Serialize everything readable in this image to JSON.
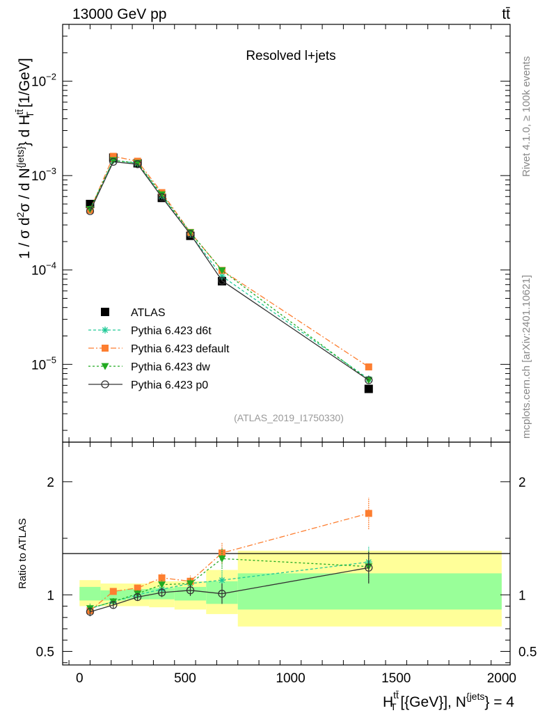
{
  "header": {
    "energy_label": "13000 GeV pp",
    "process_label": "tt̄"
  },
  "side_labels": {
    "rivet": "Rivet 4.1.0, ≥ 100k events",
    "source": "mcplots.cern.ch [arXiv:2401.10621]"
  },
  "chart_data": [
    {
      "type": "line",
      "panel": "main",
      "title": "Resolved l+jets",
      "watermark": "(ATLAS_2019_I1750330)",
      "ylabel": "1 / σ d²σ / d N^{jets} d H_T^{tt̄} [1/GeV]",
      "ylabel_parts": {
        "a": "1 / σ d",
        "b": "2",
        "c": "σ / d N",
        "d": "{jets}",
        "e": "} d H",
        "f": "tt̄",
        "g": "T",
        "h": " [1/GeV]"
      },
      "yscale": "log",
      "ylim": [
        1.5e-06,
        0.04
      ],
      "xlim": [
        -80,
        2040
      ],
      "y_ticks": [
        {
          "value": 1e-05,
          "base": "10",
          "exp": "−5"
        },
        {
          "value": 0.0001,
          "base": "10",
          "exp": "−4"
        },
        {
          "value": 0.001,
          "base": "10",
          "exp": "−3"
        },
        {
          "value": 0.01,
          "base": "10",
          "exp": "−2"
        }
      ],
      "x": [
        50,
        160,
        275,
        390,
        525,
        675,
        1370
      ],
      "series": [
        {
          "name": "ATLAS",
          "color": "#000000",
          "marker": "square",
          "dash": "none",
          "values": [
            0.0005,
            0.00155,
            0.00135,
            0.00058,
            0.00023,
            7.6e-05,
            5.5e-06
          ]
        },
        {
          "name": "Pythia 6.423 d6t",
          "color": "#20c997",
          "marker": "star",
          "dash": "4,3",
          "values": [
            0.00044,
            0.00145,
            0.00135,
            0.00061,
            0.00024,
            8.6e-05,
            7e-06
          ]
        },
        {
          "name": "Pythia 6.423 default",
          "color": "#fd7e30",
          "marker": "square-small",
          "dash": "8,3,2,3",
          "values": [
            0.00043,
            0.0016,
            0.00142,
            0.00066,
            0.00025,
            9.9e-05,
            9.4e-06
          ]
        },
        {
          "name": "Pythia 6.423 dw",
          "color": "#22aa22",
          "marker": "triangle-down",
          "dash": "3,3",
          "values": [
            0.00044,
            0.00145,
            0.00136,
            0.00063,
            0.00025,
            9.9e-05,
            6.8e-06
          ]
        },
        {
          "name": "Pythia 6.423 p0",
          "color": "#333333",
          "marker": "circle-open",
          "dash": "none",
          "values": [
            0.00042,
            0.0014,
            0.00132,
            0.00059,
            0.00024,
            7.7e-05,
            6.8e-06
          ]
        }
      ]
    },
    {
      "type": "line",
      "panel": "ratio",
      "ylabel": "Ratio to ATLAS",
      "ylim": [
        0.38,
        2.35
      ],
      "xlim": [
        -80,
        2040
      ],
      "y_ticks": [
        0.5,
        1,
        2
      ],
      "y_tick_labels": [
        "0.5",
        "1",
        "2"
      ],
      "x_ticks": [
        0,
        500,
        1000,
        1500,
        2000
      ],
      "x_tick_labels": [
        "0",
        "500",
        "1000",
        "1500",
        "2000"
      ],
      "xlabel_parts": {
        "a": "H",
        "b": "tt̄",
        "c": "T",
        "d": " [{GeV}], N",
        "e": "{jets",
        "f": "} = 4"
      },
      "bins": [
        0,
        100,
        220,
        330,
        450,
        600,
        750,
        2000
      ],
      "uncertainty_inner": [
        [
          0.95,
          1.07
        ],
        [
          0.95,
          1.04
        ],
        [
          0.96,
          1.05
        ],
        [
          0.96,
          1.06
        ],
        [
          0.95,
          1.07
        ],
        [
          0.92,
          1.12
        ],
        [
          0.87,
          1.19
        ]
      ],
      "uncertainty_outer": [
        [
          0.9,
          1.13
        ],
        [
          0.9,
          1.1
        ],
        [
          0.9,
          1.1
        ],
        [
          0.89,
          1.12
        ],
        [
          0.87,
          1.12
        ],
        [
          0.83,
          1.22
        ],
        [
          0.72,
          1.39
        ]
      ],
      "x": [
        50,
        160,
        275,
        390,
        525,
        675,
        1370
      ],
      "series": [
        {
          "name": "Pythia 6.423 d6t",
          "values": [
            0.88,
            0.94,
            1.0,
            1.05,
            1.1,
            1.13,
            1.29
          ],
          "err": [
            0.04,
            0.03,
            0.03,
            0.04,
            0.05,
            0.09,
            0.14
          ]
        },
        {
          "name": "Pythia 6.423 default",
          "values": [
            0.86,
            1.03,
            1.06,
            1.15,
            1.12,
            1.37,
            1.72
          ],
          "err": [
            0.04,
            0.03,
            0.03,
            0.04,
            0.05,
            0.09,
            0.14
          ]
        },
        {
          "name": "Pythia 6.423 dw",
          "values": [
            0.88,
            0.94,
            1.01,
            1.09,
            1.1,
            1.32,
            1.25
          ],
          "err": [
            0.04,
            0.03,
            0.03,
            0.04,
            0.05,
            0.09,
            0.14
          ]
        },
        {
          "name": "Pythia 6.423 p0",
          "values": [
            0.85,
            0.91,
            0.98,
            1.02,
            1.04,
            1.01,
            1.24
          ],
          "err": [
            0.04,
            0.03,
            0.03,
            0.04,
            0.05,
            0.09,
            0.14
          ]
        }
      ]
    }
  ]
}
